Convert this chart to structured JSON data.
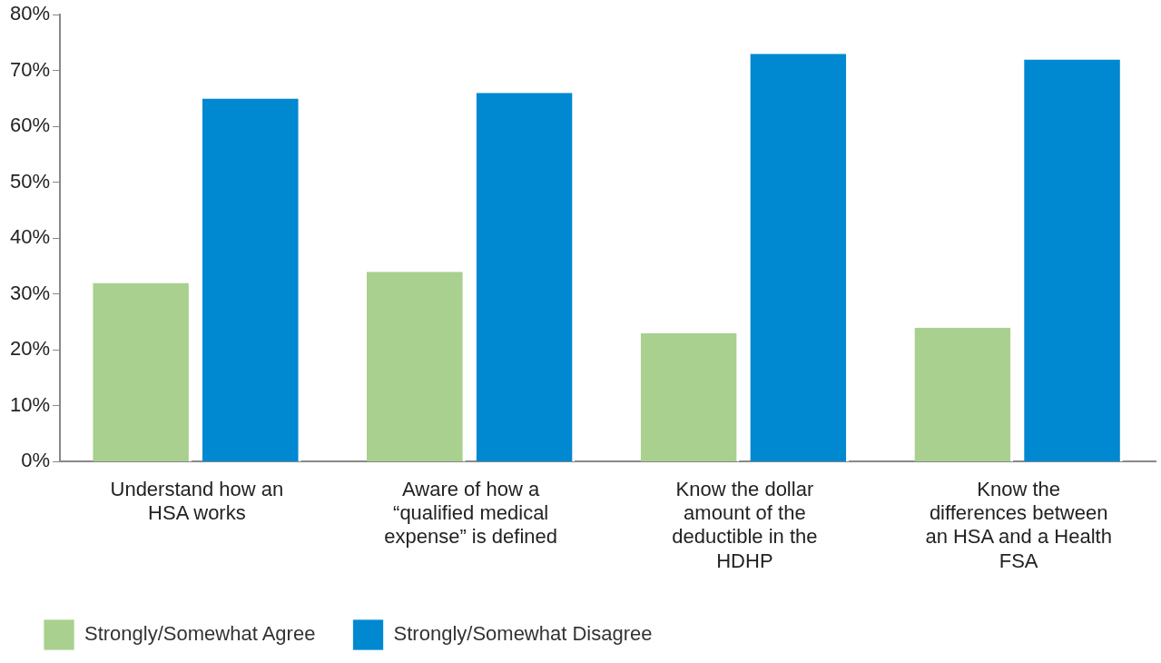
{
  "chart_data": {
    "type": "bar",
    "categories": [
      "Understand how an HSA works",
      "Aware of how a “qualified medical expense” is defined",
      "Know the dollar amount of the deductible in the HDHP",
      "Know the differences between an HSA and a Health FSA"
    ],
    "series": [
      {
        "name": "Strongly/Somewhat Agree",
        "color": "#a9d08e",
        "values": [
          32,
          34,
          23,
          24
        ]
      },
      {
        "name": "Strongly/Somewhat Disagree",
        "color": "#0088d1",
        "values": [
          65,
          66,
          73,
          72
        ]
      }
    ],
    "ylim": [
      0,
      80
    ],
    "yticks": [
      {
        "value": 0,
        "label": "0%"
      },
      {
        "value": 10,
        "label": "10%"
      },
      {
        "value": 20,
        "label": "20%"
      },
      {
        "value": 30,
        "label": "30%"
      },
      {
        "value": 40,
        "label": "40%"
      },
      {
        "value": 50,
        "label": "50%"
      },
      {
        "value": 60,
        "label": "60%"
      },
      {
        "value": 70,
        "label": "70%"
      },
      {
        "value": 80,
        "label": "80%"
      }
    ],
    "grid": false,
    "legend": "bottom left"
  }
}
